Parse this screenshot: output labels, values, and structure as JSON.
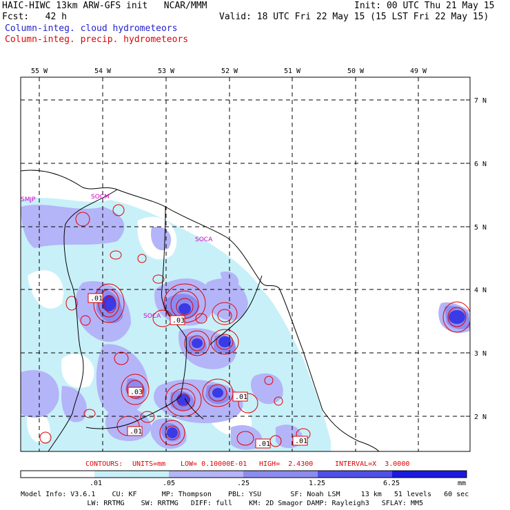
{
  "header": {
    "line1_left": "HAIC-HIWC 13km ARW-GFS init   NCAR/MMM",
    "line1_right": "Init: 00 UTC Thu 21 May 15",
    "line2_left": "Fcst:   42 h",
    "line2_right": "Valid: 18 UTC Fri 22 May 15 (15 LST Fri 22 May 15)",
    "legend_cloud": "Column-integ. cloud hydrometeors",
    "legend_precip": "Column-integ. precip. hydrometeors"
  },
  "map": {
    "lon_labels": [
      "55 W",
      "54 W",
      "53 W",
      "52 W",
      "51 W",
      "50 W",
      "49 W"
    ],
    "lat_labels": [
      "7 N",
      "6 N",
      "5 N",
      "4 N",
      "3 N",
      "2 N"
    ],
    "stations": [
      "SMJP",
      "SOCM",
      "SOCA",
      "SOCA"
    ],
    "contour_labels": [
      ".01",
      ".03",
      ".03",
      ".01",
      ".01",
      ".01",
      ".01"
    ]
  },
  "contours_line": {
    "label": "CONTOURS:",
    "units": "UNITS=mm",
    "low": "LOW= 0.10000E-01",
    "high": "HIGH=  2.4300",
    "interval": "INTERVAL=X  3.0000"
  },
  "colorbar": {
    "ticks": [
      ".01",
      ".05",
      ".25",
      "1.25",
      "6.25"
    ],
    "unit": "mm",
    "colors": [
      "#ffffff",
      "#c8f0f8",
      "#b4b4f8",
      "#8c8cf0",
      "#5050e8",
      "#1a1ae0"
    ]
  },
  "model_info": {
    "line1": "Model Info: V3.6.1    CU: KF      MP: Thompson    PBL: YSU       SF: Noah LSM     13 km   51 levels   60 sec",
    "line2": "                LW: RRTMG    SW: RRTMG   DIFF: full    KM: 2D Smagor DAMP: Rayleigh3   SFLAY: MM5"
  }
}
